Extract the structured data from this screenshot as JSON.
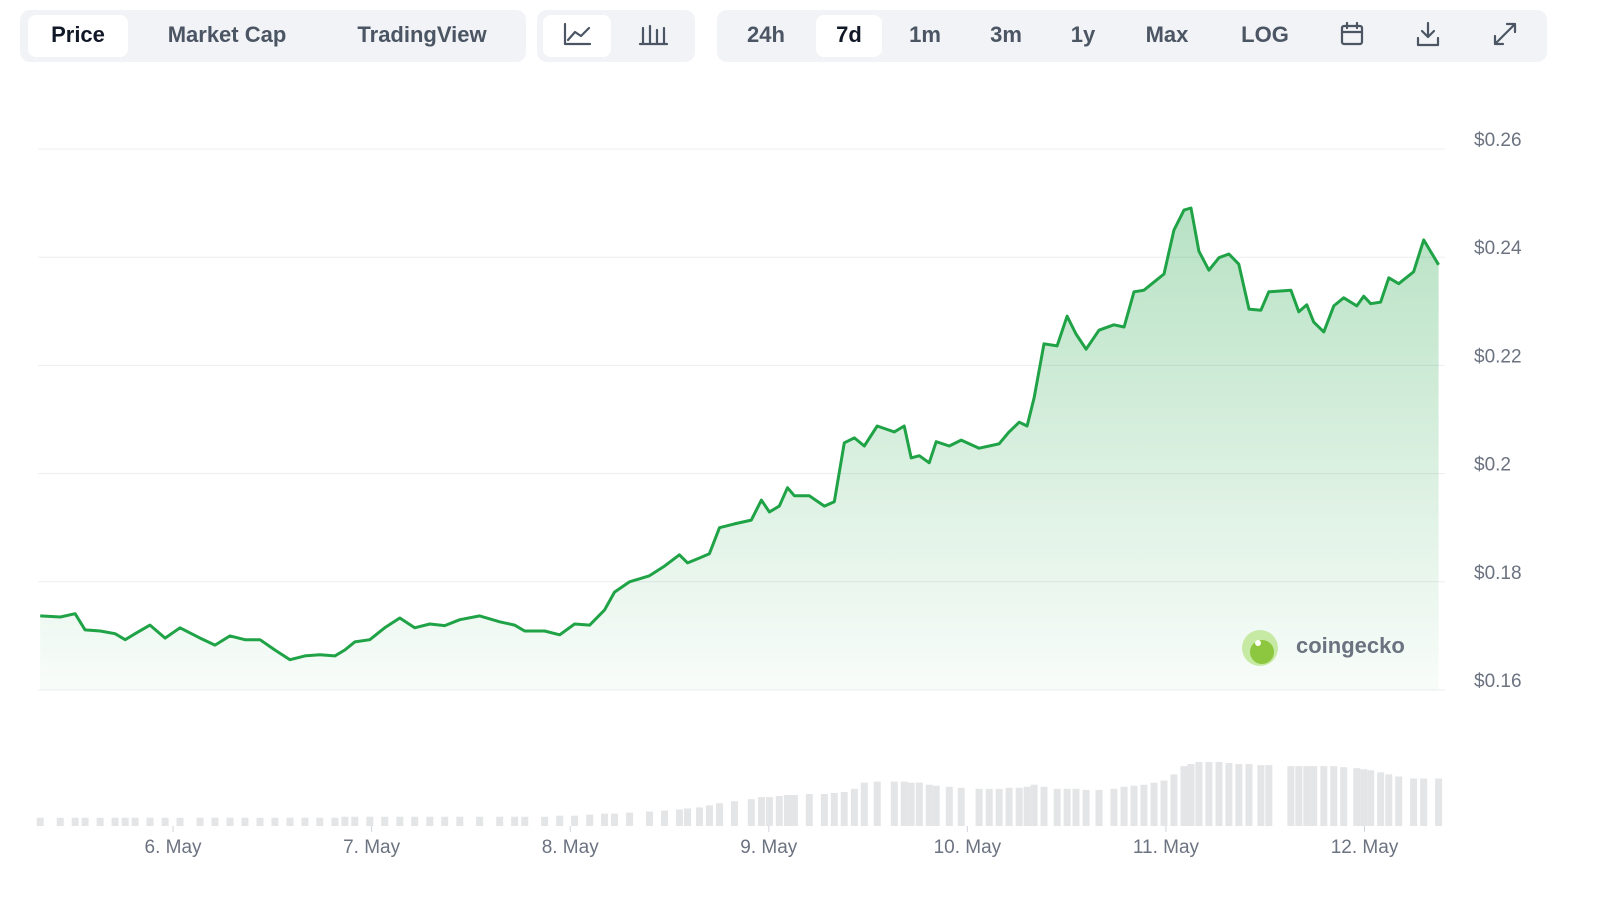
{
  "toolbar": {
    "view_tabs": [
      "Price",
      "Market Cap",
      "TradingView"
    ],
    "selected_view": 0,
    "ranges": [
      "24h",
      "7d",
      "1m",
      "3m",
      "1y",
      "Max",
      "LOG"
    ],
    "selected_range": 1
  },
  "chart_data": {
    "type": "area",
    "watermark": "coingecko",
    "color": "#1fa346",
    "volume_color": "#e4e5e7",
    "grid": true,
    "xlim": [
      5.33,
      12.38
    ],
    "xticks": [
      {
        "value": 6,
        "label": "6. May"
      },
      {
        "value": 7,
        "label": "7. May"
      },
      {
        "value": 8,
        "label": "8. May"
      },
      {
        "value": 9,
        "label": "9. May"
      },
      {
        "value": 10,
        "label": "10. May"
      },
      {
        "value": 11,
        "label": "11. May"
      },
      {
        "value": 12,
        "label": "12. May"
      }
    ],
    "ylim": [
      0.16,
      0.26
    ],
    "yticks": [
      {
        "value": 0.16,
        "label": "$0.16"
      },
      {
        "value": 0.18,
        "label": "$0.18"
      },
      {
        "value": 0.2,
        "label": "$0.2"
      },
      {
        "value": 0.22,
        "label": "$0.22"
      },
      {
        "value": 0.24,
        "label": "$0.24"
      },
      {
        "value": 0.26,
        "label": "$0.26"
      }
    ],
    "x": [
      5.331,
      5.432,
      5.507,
      5.557,
      5.633,
      5.708,
      5.759,
      5.809,
      5.884,
      5.96,
      6.035,
      6.136,
      6.211,
      6.287,
      6.362,
      6.438,
      6.513,
      6.589,
      6.664,
      6.739,
      6.815,
      6.865,
      6.915,
      6.991,
      7.066,
      7.142,
      7.217,
      7.293,
      7.368,
      7.444,
      7.544,
      7.645,
      7.72,
      7.771,
      7.871,
      7.947,
      8.022,
      8.098,
      8.173,
      8.223,
      8.299,
      8.399,
      8.475,
      8.55,
      8.591,
      8.651,
      8.701,
      8.752,
      8.827,
      8.912,
      8.963,
      9.003,
      9.053,
      9.094,
      9.129,
      9.204,
      9.28,
      9.33,
      9.38,
      9.431,
      9.481,
      9.546,
      9.632,
      9.682,
      9.717,
      9.758,
      9.808,
      9.843,
      9.909,
      9.969,
      10.059,
      10.11,
      10.16,
      10.21,
      10.261,
      10.301,
      10.336,
      10.386,
      10.452,
      10.502,
      10.547,
      10.598,
      10.663,
      10.738,
      10.789,
      10.839,
      10.889,
      10.94,
      10.99,
      11.04,
      11.091,
      11.126,
      11.166,
      11.216,
      11.267,
      11.317,
      11.367,
      11.418,
      11.478,
      11.518,
      11.629,
      11.669,
      11.709,
      11.744,
      11.795,
      11.845,
      11.895,
      11.961,
      11.996,
      12.031,
      12.081,
      12.122,
      12.172,
      12.247,
      12.298,
      12.373
    ],
    "values": [
      0.1737,
      0.1735,
      0.1741,
      0.1711,
      0.1709,
      0.1704,
      0.1693,
      0.1704,
      0.172,
      0.1696,
      0.1715,
      0.1696,
      0.1683,
      0.17,
      0.1693,
      0.1693,
      0.1674,
      0.1656,
      0.1663,
      0.1665,
      0.1663,
      0.1674,
      0.1689,
      0.1693,
      0.1715,
      0.1733,
      0.1715,
      0.1722,
      0.1719,
      0.173,
      0.1737,
      0.1726,
      0.172,
      0.1709,
      0.1709,
      0.1702,
      0.1722,
      0.172,
      0.1748,
      0.1781,
      0.18,
      0.1811,
      0.1829,
      0.185,
      0.1835,
      0.1844,
      0.1852,
      0.19,
      0.1907,
      0.1914,
      0.1951,
      0.1929,
      0.194,
      0.1974,
      0.1959,
      0.1959,
      0.194,
      0.1948,
      0.2057,
      0.2066,
      0.2051,
      0.2088,
      0.2077,
      0.2088,
      0.2029,
      0.2033,
      0.202,
      0.2059,
      0.2051,
      0.2062,
      0.2047,
      0.2051,
      0.2055,
      0.2077,
      0.2095,
      0.2088,
      0.214,
      0.224,
      0.2236,
      0.2291,
      0.2258,
      0.223,
      0.2265,
      0.2275,
      0.2271,
      0.2336,
      0.2339,
      0.2354,
      0.2369,
      0.245,
      0.2487,
      0.2491,
      0.2411,
      0.2376,
      0.2399,
      0.2406,
      0.2387,
      0.2304,
      0.2302,
      0.2336,
      0.2339,
      0.2299,
      0.2312,
      0.228,
      0.2262,
      0.231,
      0.2325,
      0.231,
      0.2328,
      0.2314,
      0.2317,
      0.2362,
      0.2351,
      0.2373,
      0.2432,
      0.2386
    ],
    "volume": [
      8,
      8,
      8,
      8,
      8,
      8,
      8,
      8,
      8,
      8,
      8,
      8,
      8,
      8,
      8,
      8,
      8,
      8,
      8,
      8,
      8,
      9,
      9,
      9,
      9,
      9,
      9,
      9,
      9,
      9,
      9,
      9,
      9,
      9,
      9,
      10,
      10,
      11,
      12,
      12,
      13,
      14,
      15,
      16,
      17,
      18,
      20,
      22,
      24,
      26,
      28,
      28,
      29,
      30,
      30,
      31,
      31,
      32,
      33,
      36,
      42,
      43,
      43,
      43,
      42,
      42,
      40,
      39,
      38,
      37,
      36,
      36,
      36,
      37,
      37,
      38,
      40,
      38,
      36,
      36,
      36,
      35,
      35,
      36,
      38,
      39,
      40,
      42,
      44,
      50,
      58,
      60,
      62,
      62,
      62,
      61,
      60,
      60,
      59,
      59,
      58,
      58,
      58,
      58,
      58,
      58,
      57,
      56,
      55,
      54,
      52,
      50,
      48,
      46,
      46,
      46
    ]
  }
}
